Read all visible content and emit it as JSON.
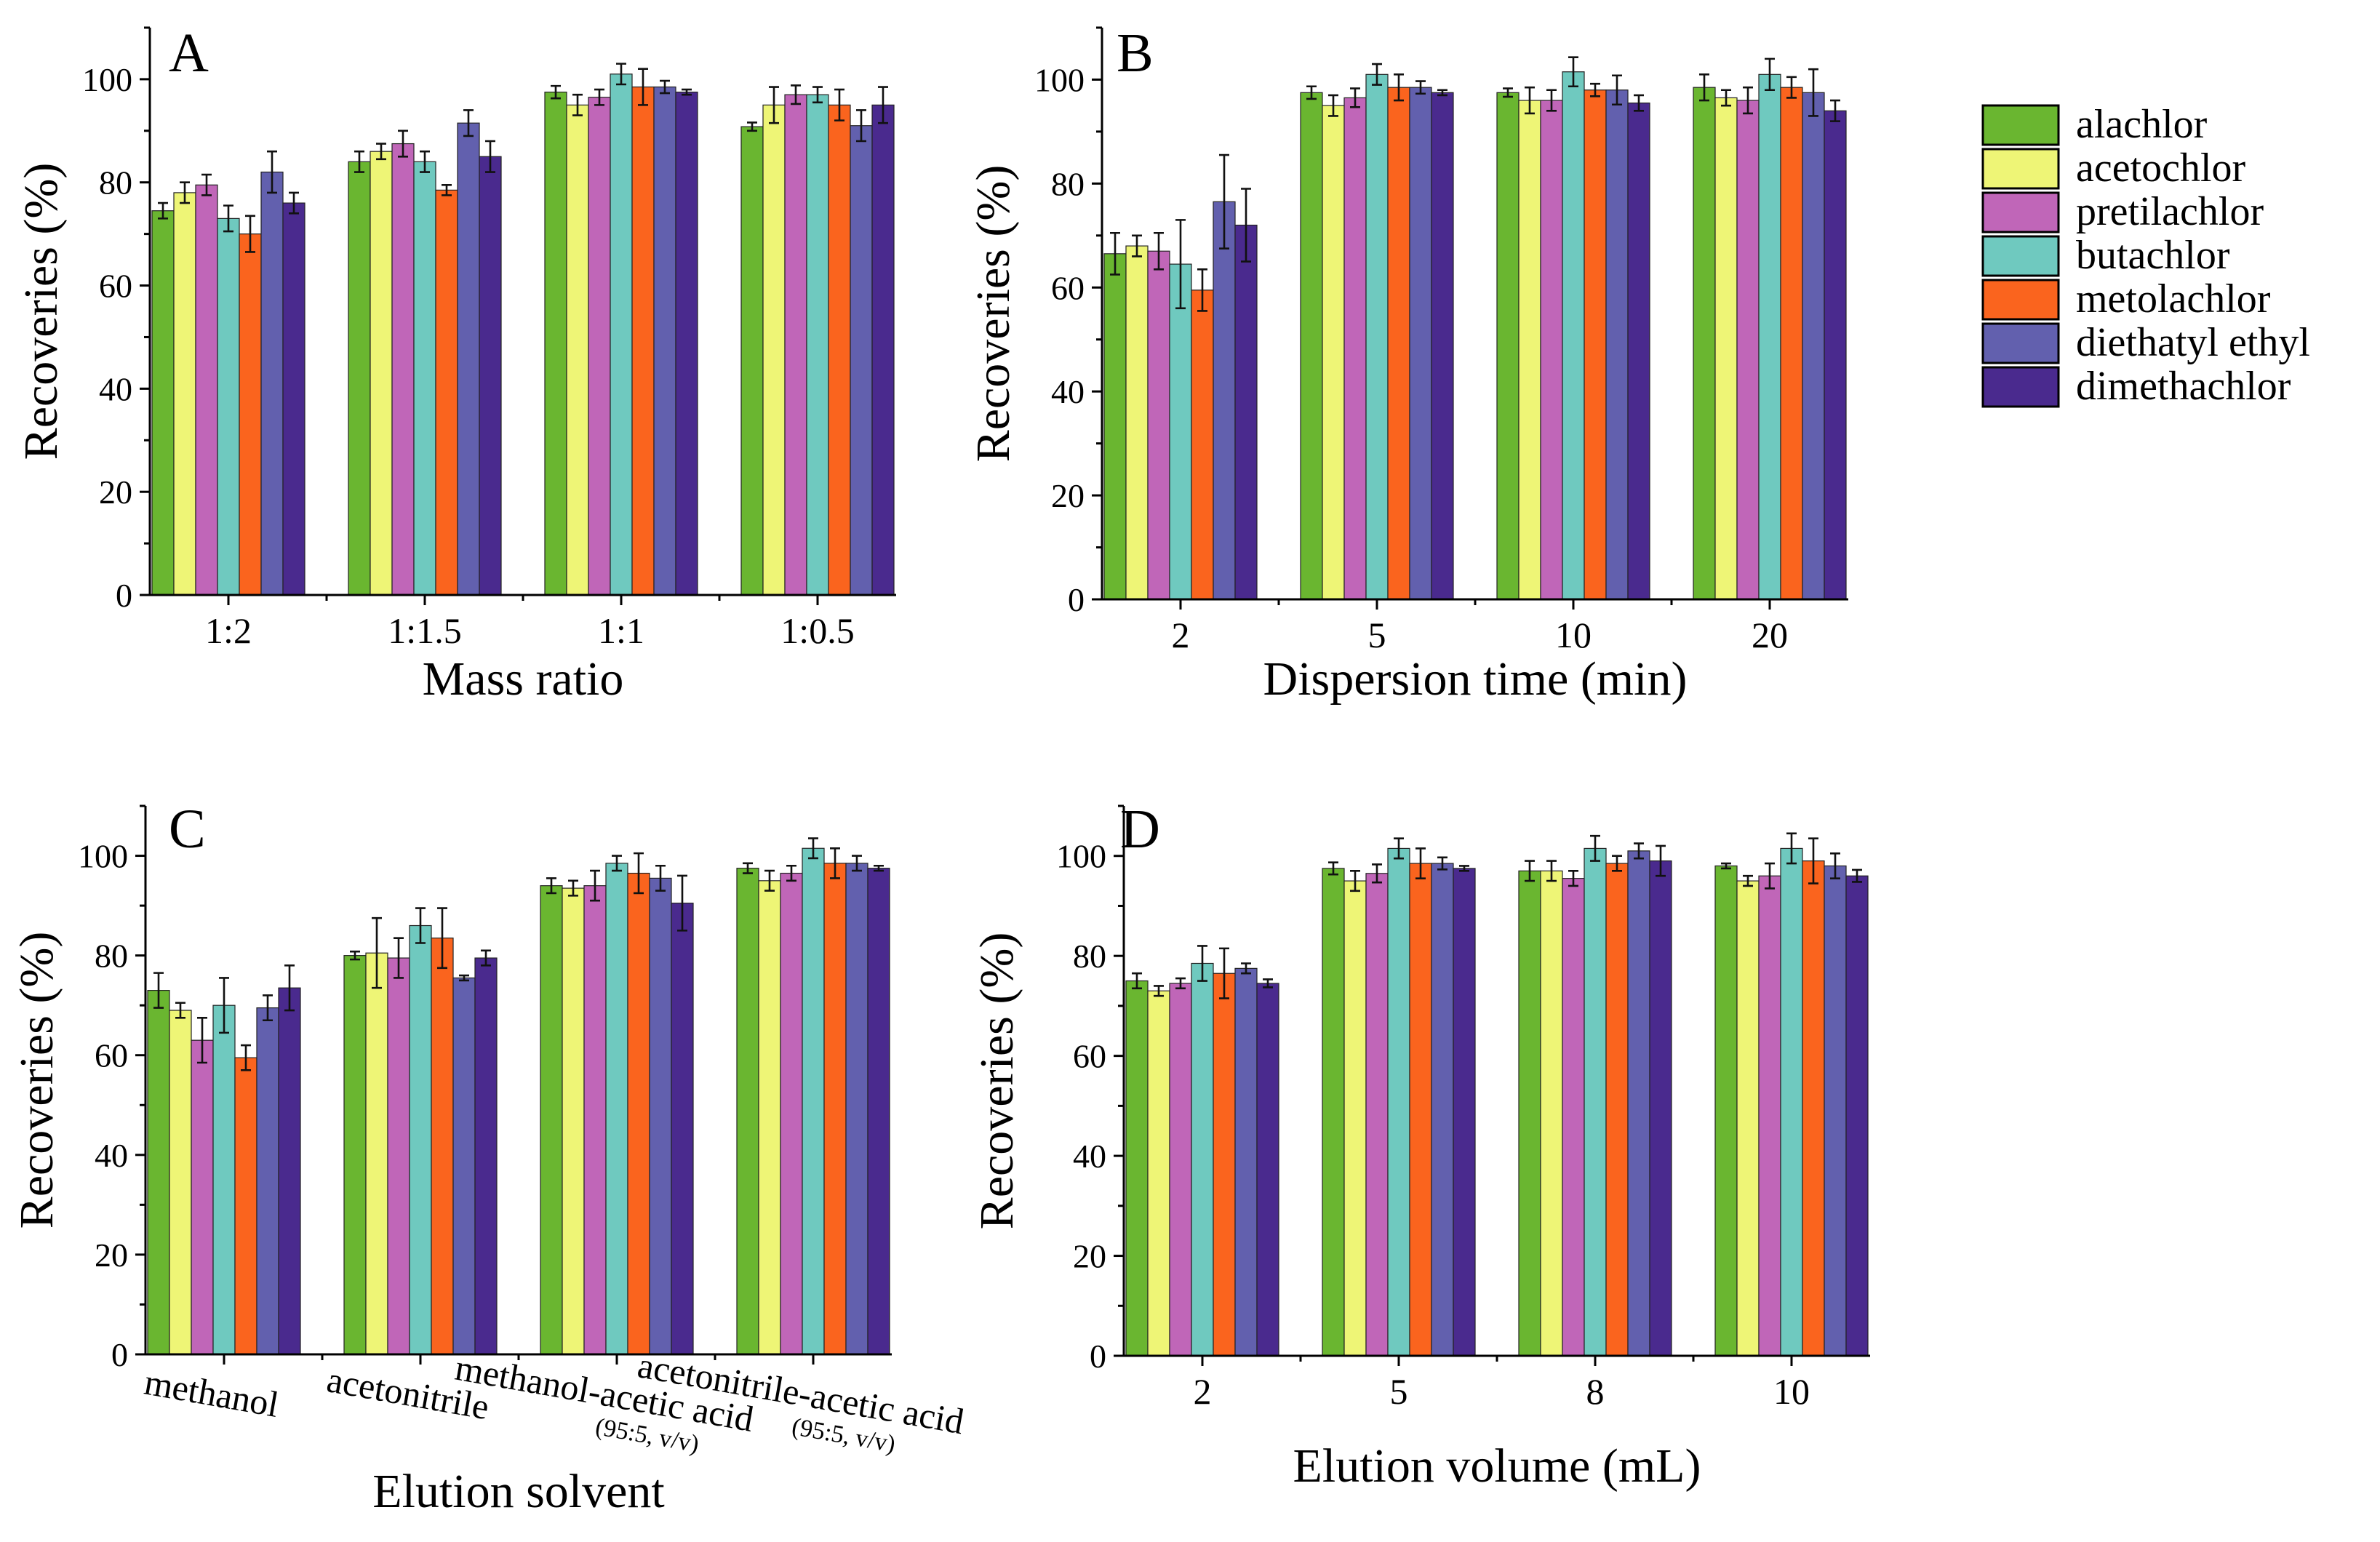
{
  "colors": {
    "alachlor": "#6ab630",
    "acetochlor": "#eef576",
    "pretilachlor": "#c066b8",
    "butachlor": "#6fc9bf",
    "metolachlor": "#fa641e",
    "diethatyl ethyl": "#6260ae",
    "dimethachlor": "#4a2a8e"
  },
  "legend": [
    "alachlor",
    "acetochlor",
    "pretilachlor",
    "butachlor",
    "metolachlor",
    "diethatyl ethyl",
    "dimethachlor"
  ],
  "chart_data": [
    {
      "panel": "A",
      "type": "bar",
      "title": "",
      "xlabel": "Mass ratio",
      "ylabel": "Recoveries (%)",
      "ylim": [
        0,
        110
      ],
      "yticks": [
        0,
        20,
        40,
        60,
        80,
        100
      ],
      "categories": [
        "1:2",
        "1:1.5",
        "1:1",
        "1:0.5"
      ],
      "series": [
        {
          "name": "alachlor",
          "values": [
            74.5,
            84,
            97.5,
            90.8
          ],
          "errors": [
            1.5,
            2,
            1.2,
            0.8
          ]
        },
        {
          "name": "acetochlor",
          "values": [
            78,
            86,
            95,
            95
          ],
          "errors": [
            2,
            1.5,
            2,
            3.5
          ]
        },
        {
          "name": "pretilachlor",
          "values": [
            79.5,
            87.5,
            96.5,
            97
          ],
          "errors": [
            2,
            2.5,
            1.5,
            1.8
          ]
        },
        {
          "name": "butachlor",
          "values": [
            73,
            84,
            101,
            97
          ],
          "errors": [
            2.5,
            2,
            2,
            1.5
          ]
        },
        {
          "name": "metolachlor",
          "values": [
            70,
            78.5,
            98.5,
            95
          ],
          "errors": [
            3.5,
            1,
            3.5,
            3
          ]
        },
        {
          "name": "diethatyl ethyl",
          "values": [
            82,
            91.5,
            98.5,
            91
          ],
          "errors": [
            4,
            2.5,
            1.2,
            3
          ]
        },
        {
          "name": "dimethachlor",
          "values": [
            76,
            85,
            97.5,
            95
          ],
          "errors": [
            2,
            3,
            0.5,
            3.5
          ]
        }
      ]
    },
    {
      "panel": "B",
      "type": "bar",
      "title": "",
      "xlabel": "Dispersion time (min)",
      "ylabel": "Recoveries (%)",
      "ylim": [
        0,
        110
      ],
      "yticks": [
        0,
        20,
        40,
        60,
        80,
        100
      ],
      "categories": [
        "2",
        "5",
        "10",
        "20"
      ],
      "series": [
        {
          "name": "alachlor",
          "values": [
            66.5,
            97.5,
            97.5,
            98.5
          ],
          "errors": [
            4,
            1.2,
            0.8,
            2.5
          ]
        },
        {
          "name": "acetochlor",
          "values": [
            68,
            95,
            96,
            96.5
          ],
          "errors": [
            2,
            2,
            2.5,
            1.5
          ]
        },
        {
          "name": "pretilachlor",
          "values": [
            67,
            96.5,
            96,
            96
          ],
          "errors": [
            3.5,
            1.8,
            2,
            2.5
          ]
        },
        {
          "name": "butachlor",
          "values": [
            64.5,
            101,
            101.5,
            101
          ],
          "errors": [
            8.5,
            2,
            2.8,
            3
          ]
        },
        {
          "name": "metolachlor",
          "values": [
            59.5,
            98.5,
            98,
            98.5
          ],
          "errors": [
            4,
            2.5,
            1.2,
            2
          ]
        },
        {
          "name": "diethatyl ethyl",
          "values": [
            76.5,
            98.5,
            98,
            97.5
          ],
          "errors": [
            9,
            1.2,
            2.8,
            4.5
          ]
        },
        {
          "name": "dimethachlor",
          "values": [
            72,
            97.5,
            95.5,
            94
          ],
          "errors": [
            7,
            0.5,
            1.5,
            2
          ]
        }
      ]
    },
    {
      "panel": "C",
      "type": "bar",
      "title": "",
      "xlabel": "Elution solvent",
      "ylabel": "Recoveries (%)",
      "ylim": [
        0,
        110
      ],
      "yticks": [
        0,
        20,
        40,
        60,
        80,
        100
      ],
      "categories": [
        "methanol",
        "acetonitrile",
        "methanol-acetic acid",
        "acetonitrile-acetic acid"
      ],
      "category_notes": [
        "",
        "",
        "(95:5, v/v)",
        "(95:5, v/v)"
      ],
      "series": [
        {
          "name": "alachlor",
          "values": [
            73,
            80,
            94,
            97.5
          ],
          "errors": [
            3.5,
            0.8,
            1.5,
            1
          ]
        },
        {
          "name": "acetochlor",
          "values": [
            69,
            80.5,
            93.5,
            95
          ],
          "errors": [
            1.5,
            7,
            1.5,
            2
          ]
        },
        {
          "name": "pretilachlor",
          "values": [
            63,
            79.5,
            94,
            96.5
          ],
          "errors": [
            4.5,
            4,
            3,
            1.5
          ]
        },
        {
          "name": "butachlor",
          "values": [
            70,
            86,
            98.5,
            101.5
          ],
          "errors": [
            5.5,
            3.5,
            1.5,
            2
          ]
        },
        {
          "name": "metolachlor",
          "values": [
            59.5,
            83.5,
            96.5,
            98.5
          ],
          "errors": [
            2.5,
            6,
            4,
            3
          ]
        },
        {
          "name": "diethatyl ethyl",
          "values": [
            69.5,
            75.5,
            95.5,
            98.5
          ],
          "errors": [
            2.5,
            0.5,
            2.5,
            1.5
          ]
        },
        {
          "name": "dimethachlor",
          "values": [
            73.5,
            79.5,
            90.5,
            97.5
          ],
          "errors": [
            4.5,
            1.5,
            5.5,
            0.5
          ]
        }
      ]
    },
    {
      "panel": "D",
      "type": "bar",
      "title": "",
      "xlabel": "Elution volume (mL)",
      "ylabel": "Recoveries (%)",
      "ylim": [
        0,
        110
      ],
      "yticks": [
        0,
        20,
        40,
        60,
        80,
        100
      ],
      "categories": [
        "2",
        "5",
        "8",
        "10"
      ],
      "series": [
        {
          "name": "alachlor",
          "values": [
            75,
            97.5,
            97,
            98
          ],
          "errors": [
            1.5,
            1.2,
            2,
            0.5
          ]
        },
        {
          "name": "acetochlor",
          "values": [
            73,
            95,
            97,
            95
          ],
          "errors": [
            1,
            2,
            2,
            1
          ]
        },
        {
          "name": "pretilachlor",
          "values": [
            74.5,
            96.5,
            95.5,
            96
          ],
          "errors": [
            1,
            1.8,
            1.5,
            2.5
          ]
        },
        {
          "name": "butachlor",
          "values": [
            78.5,
            101.5,
            101.5,
            101.5
          ],
          "errors": [
            3.5,
            2,
            2.5,
            3
          ]
        },
        {
          "name": "metolachlor",
          "values": [
            76.5,
            98.5,
            98.5,
            99
          ],
          "errors": [
            5,
            3,
            1.5,
            4.5
          ]
        },
        {
          "name": "diethatyl ethyl",
          "values": [
            77.5,
            98.5,
            101,
            98
          ],
          "errors": [
            1,
            1.2,
            1.5,
            2.5
          ]
        },
        {
          "name": "dimethachlor",
          "values": [
            74.5,
            97.5,
            99,
            96
          ],
          "errors": [
            0.8,
            0.5,
            3,
            1.2
          ]
        }
      ]
    }
  ]
}
